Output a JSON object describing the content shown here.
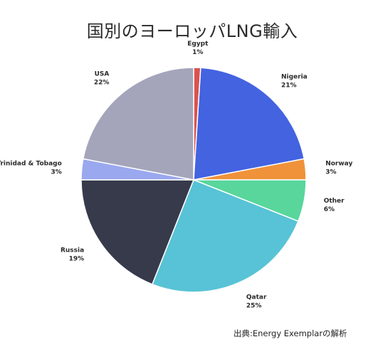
{
  "chart_data": {
    "type": "pie",
    "title": "国別のヨーロッパLNG輸入",
    "source": "出典:Energy Exemplarの解析",
    "slices": [
      {
        "name": "Egypt",
        "value": 1,
        "label": "1%",
        "color": "#d9534f"
      },
      {
        "name": "Nigeria",
        "value": 21,
        "label": "21%",
        "color": "#4363e0"
      },
      {
        "name": "Norway",
        "value": 3,
        "label": "3%",
        "color": "#f0923a"
      },
      {
        "name": "Other",
        "value": 6,
        "label": "6%",
        "color": "#58d69b"
      },
      {
        "name": "Qatar",
        "value": 25,
        "label": "25%",
        "color": "#58c3d6"
      },
      {
        "name": "Russia",
        "value": 19,
        "label": "19%",
        "color": "#363a4b"
      },
      {
        "name": "Trinidad & Tobago",
        "value": 3,
        "label": "3%",
        "color": "#9aa8ef"
      },
      {
        "name": "USA",
        "value": 22,
        "label": "22%",
        "color": "#a4a5bb"
      }
    ]
  }
}
